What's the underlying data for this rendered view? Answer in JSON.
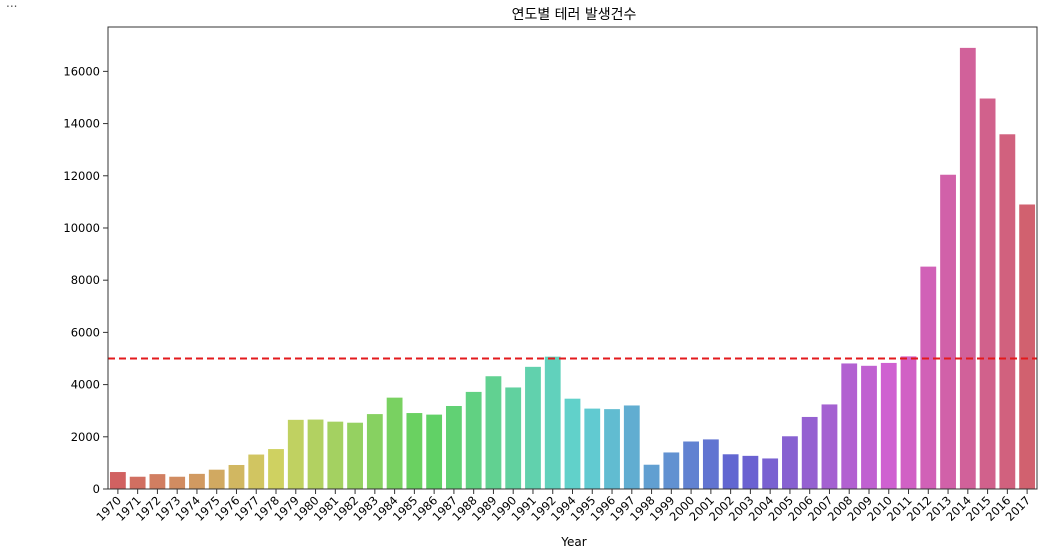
{
  "output_prompt": "...",
  "chart_data": {
    "type": "bar",
    "title": "연도별 테러 발생건수",
    "xlabel": "Year",
    "ylabel": "",
    "ylim": [
      0,
      17700
    ],
    "yticks": [
      0,
      2000,
      4000,
      6000,
      8000,
      10000,
      12000,
      14000,
      16000
    ],
    "categories": [
      "1970",
      "1971",
      "1972",
      "1973",
      "1974",
      "1975",
      "1976",
      "1977",
      "1978",
      "1979",
      "1980",
      "1981",
      "1982",
      "1983",
      "1984",
      "1985",
      "1986",
      "1987",
      "1988",
      "1989",
      "1990",
      "1991",
      "1992",
      "1994",
      "1995",
      "1996",
      "1997",
      "1998",
      "1999",
      "2000",
      "2001",
      "2002",
      "2003",
      "2004",
      "2005",
      "2006",
      "2007",
      "2008",
      "2009",
      "2010",
      "2011",
      "2012",
      "2013",
      "2014",
      "2015",
      "2016",
      "2017"
    ],
    "values": [
      650,
      470,
      570,
      470,
      580,
      740,
      920,
      1320,
      1530,
      2650,
      2660,
      2580,
      2540,
      2870,
      3500,
      2910,
      2850,
      3180,
      3720,
      4320,
      3890,
      4680,
      5070,
      3460,
      3080,
      3060,
      3200,
      930,
      1400,
      1820,
      1900,
      1330,
      1270,
      1170,
      2020,
      2760,
      3240,
      4810,
      4720,
      4830,
      5080,
      8520,
      12040,
      16900,
      14960,
      13590,
      10900
    ],
    "reference_line": {
      "value": 5000,
      "color": "#e31a1c",
      "style": "dashed"
    },
    "palette": "hls rainbow",
    "grid": false
  }
}
